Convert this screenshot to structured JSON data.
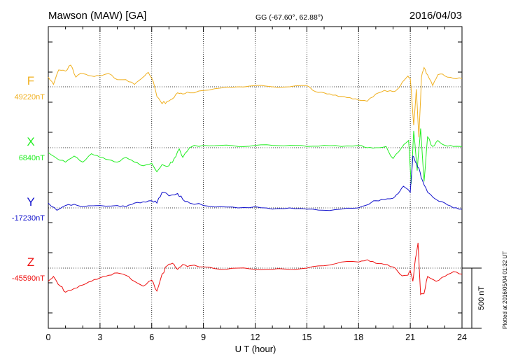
{
  "header": {
    "station": "Mawson (MAW)  [GA]",
    "coords": "GG (-67.60°,  62.88°)",
    "date": "2016/04/03"
  },
  "plotted": "Plotted at 2016/05/04 01:32 UT",
  "chart_data": {
    "type": "line",
    "xlabel": "U T (hour)",
    "xlim": [
      0,
      24
    ],
    "xticks": [
      0,
      3,
      6,
      9,
      12,
      15,
      18,
      21,
      24
    ],
    "tick_labels": [
      "0",
      "3",
      "6",
      "9",
      "12",
      "15",
      "18",
      "21",
      "24"
    ],
    "grid": true,
    "scale_bar": {
      "label": "500 nT",
      "value": 500
    },
    "series": [
      {
        "name": "F",
        "baseline_label": "49220nT",
        "baseline": 49220,
        "color": "#f0b020",
        "points": [
          [
            0,
            49300
          ],
          [
            0.3,
            49240
          ],
          [
            0.6,
            49360
          ],
          [
            1,
            49350
          ],
          [
            1.3,
            49400
          ],
          [
            1.6,
            49300
          ],
          [
            2,
            49330
          ],
          [
            2.5,
            49310
          ],
          [
            3,
            49310
          ],
          [
            3.5,
            49330
          ],
          [
            4,
            49280
          ],
          [
            4.5,
            49280
          ],
          [
            5,
            49240
          ],
          [
            5.5,
            49300
          ],
          [
            5.8,
            49340
          ],
          [
            6.1,
            49260
          ],
          [
            6.3,
            49140
          ],
          [
            6.6,
            49080
          ],
          [
            6.9,
            49100
          ],
          [
            7.2,
            49120
          ],
          [
            7.5,
            49170
          ],
          [
            7.8,
            49160
          ],
          [
            8.2,
            49170
          ],
          [
            9,
            49190
          ],
          [
            10,
            49210
          ],
          [
            11,
            49220
          ],
          [
            12,
            49230
          ],
          [
            13,
            49220
          ],
          [
            14,
            49220
          ],
          [
            15,
            49230
          ],
          [
            15.5,
            49180
          ],
          [
            16,
            49170
          ],
          [
            16.5,
            49150
          ],
          [
            17,
            49140
          ],
          [
            17.5,
            49130
          ],
          [
            18,
            49110
          ],
          [
            18.5,
            49100
          ],
          [
            19,
            49160
          ],
          [
            19.5,
            49190
          ],
          [
            20,
            49180
          ],
          [
            20.4,
            49220
          ],
          [
            20.8,
            49300
          ],
          [
            21,
            49290
          ],
          [
            21.2,
            48900
          ],
          [
            21.35,
            49200
          ],
          [
            21.5,
            48800
          ],
          [
            21.65,
            49300
          ],
          [
            21.8,
            49380
          ],
          [
            22,
            49320
          ],
          [
            22.3,
            49230
          ],
          [
            22.6,
            49320
          ],
          [
            23,
            49310
          ],
          [
            23.5,
            49290
          ],
          [
            24,
            49290
          ]
        ]
      },
      {
        "name": "X",
        "baseline_label": "6840nT",
        "baseline": 6840,
        "color": "#22ee22",
        "points": [
          [
            0,
            6800
          ],
          [
            0.5,
            6750
          ],
          [
            1,
            6720
          ],
          [
            1.5,
            6770
          ],
          [
            2,
            6720
          ],
          [
            2.5,
            6790
          ],
          [
            3,
            6760
          ],
          [
            3.5,
            6740
          ],
          [
            4,
            6720
          ],
          [
            4.5,
            6760
          ],
          [
            5,
            6720
          ],
          [
            5.5,
            6690
          ],
          [
            6,
            6710
          ],
          [
            6.3,
            6640
          ],
          [
            6.6,
            6700
          ],
          [
            7,
            6690
          ],
          [
            7.3,
            6750
          ],
          [
            7.6,
            6830
          ],
          [
            7.8,
            6760
          ],
          [
            8.2,
            6840
          ],
          [
            9,
            6860
          ],
          [
            10,
            6860
          ],
          [
            11,
            6850
          ],
          [
            12,
            6860
          ],
          [
            13,
            6860
          ],
          [
            14,
            6860
          ],
          [
            15,
            6850
          ],
          [
            16,
            6860
          ],
          [
            17,
            6850
          ],
          [
            18,
            6860
          ],
          [
            18.5,
            6840
          ],
          [
            19,
            6840
          ],
          [
            19.6,
            6850
          ],
          [
            20,
            6750
          ],
          [
            20.5,
            6840
          ],
          [
            20.9,
            6900
          ],
          [
            21.05,
            6540
          ],
          [
            21.2,
            6980
          ],
          [
            21.4,
            6650
          ],
          [
            21.6,
            7000
          ],
          [
            21.8,
            6560
          ],
          [
            22,
            6930
          ],
          [
            22.3,
            6850
          ],
          [
            22.6,
            6900
          ],
          [
            23,
            6860
          ],
          [
            23.5,
            6850
          ],
          [
            24,
            6850
          ]
        ]
      },
      {
        "name": "Y",
        "baseline_label": "-17230nT",
        "baseline": -17230,
        "color": "#1111cc",
        "points": [
          [
            0,
            -17190
          ],
          [
            0.5,
            -17250
          ],
          [
            1,
            -17210
          ],
          [
            1.5,
            -17200
          ],
          [
            2,
            -17220
          ],
          [
            3,
            -17210
          ],
          [
            4,
            -17210
          ],
          [
            4.5,
            -17220
          ],
          [
            5,
            -17190
          ],
          [
            5.5,
            -17180
          ],
          [
            6,
            -17170
          ],
          [
            6.3,
            -17190
          ],
          [
            6.6,
            -17100
          ],
          [
            7,
            -17130
          ],
          [
            7.5,
            -17110
          ],
          [
            7.8,
            -17160
          ],
          [
            8.2,
            -17190
          ],
          [
            9,
            -17210
          ],
          [
            10,
            -17220
          ],
          [
            11,
            -17230
          ],
          [
            12,
            -17220
          ],
          [
            13,
            -17240
          ],
          [
            14,
            -17230
          ],
          [
            15,
            -17240
          ],
          [
            16,
            -17250
          ],
          [
            17,
            -17240
          ],
          [
            18,
            -17230
          ],
          [
            18.6,
            -17200
          ],
          [
            19,
            -17170
          ],
          [
            19.5,
            -17160
          ],
          [
            20,
            -17150
          ],
          [
            20.3,
            -17110
          ],
          [
            20.6,
            -17050
          ],
          [
            21,
            -17100
          ],
          [
            21.15,
            -16800
          ],
          [
            21.3,
            -16850
          ],
          [
            21.5,
            -16900
          ],
          [
            21.7,
            -17000
          ],
          [
            22,
            -17100
          ],
          [
            22.5,
            -17160
          ],
          [
            23,
            -17190
          ],
          [
            23.5,
            -17230
          ],
          [
            24,
            -17240
          ]
        ]
      },
      {
        "name": "Z",
        "baseline_label": "-45590nT",
        "baseline": -45590,
        "color": "#ee1111",
        "points": [
          [
            0,
            -45700
          ],
          [
            0.3,
            -45660
          ],
          [
            0.7,
            -45740
          ],
          [
            1,
            -45790
          ],
          [
            1.5,
            -45760
          ],
          [
            2,
            -45730
          ],
          [
            2.5,
            -45700
          ],
          [
            3,
            -45670
          ],
          [
            3.5,
            -45650
          ],
          [
            4,
            -45630
          ],
          [
            4.5,
            -45650
          ],
          [
            5,
            -45700
          ],
          [
            5.5,
            -45740
          ],
          [
            6,
            -45690
          ],
          [
            6.3,
            -45780
          ],
          [
            6.6,
            -45640
          ],
          [
            6.9,
            -45570
          ],
          [
            7.2,
            -45550
          ],
          [
            7.5,
            -45600
          ],
          [
            7.8,
            -45560
          ],
          [
            8.2,
            -45570
          ],
          [
            9,
            -45580
          ],
          [
            10,
            -45600
          ],
          [
            11,
            -45590
          ],
          [
            12,
            -45600
          ],
          [
            13,
            -45600
          ],
          [
            14,
            -45600
          ],
          [
            15,
            -45590
          ],
          [
            16,
            -45570
          ],
          [
            17,
            -45540
          ],
          [
            18,
            -45540
          ],
          [
            18.5,
            -45520
          ],
          [
            19,
            -45550
          ],
          [
            19.5,
            -45560
          ],
          [
            20,
            -45580
          ],
          [
            20.4,
            -45640
          ],
          [
            20.8,
            -45650
          ],
          [
            21,
            -45610
          ],
          [
            21.15,
            -45700
          ],
          [
            21.3,
            -45510
          ],
          [
            21.45,
            -45380
          ],
          [
            21.6,
            -45810
          ],
          [
            21.8,
            -45800
          ],
          [
            22,
            -45660
          ],
          [
            22.5,
            -45700
          ],
          [
            23,
            -45660
          ],
          [
            23.5,
            -45620
          ],
          [
            24,
            -45640
          ]
        ]
      }
    ]
  }
}
